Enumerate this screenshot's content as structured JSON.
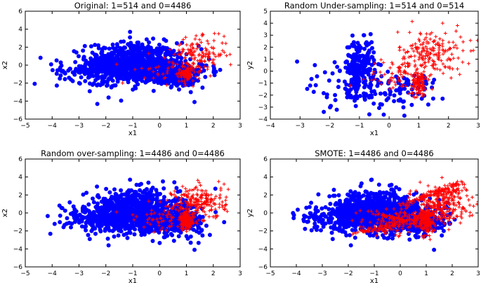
{
  "colors": {
    "class_0": "#0000ff",
    "class_1": "#ff0000",
    "axis": "#000000",
    "background": "#ffffff"
  },
  "chart_data": [
    {
      "type": "scatter",
      "title": "Original: 1=514 and 0=4486",
      "xlabel": "x1",
      "ylabel": "x2",
      "xlim": [
        -5,
        3
      ],
      "ylim": [
        -6,
        6
      ],
      "xticks": [
        -5,
        -4,
        -3,
        -2,
        -1,
        0,
        1,
        2,
        3
      ],
      "yticks": [
        -6,
        -4,
        -2,
        0,
        2,
        4,
        6
      ],
      "grid": false,
      "series": [
        {
          "class": "0",
          "marker": "circle",
          "count": 4486,
          "color": "#0000ff",
          "clusters": [
            {
              "cx": -1.0,
              "cy": 0.3,
              "sx": 0.85,
              "sy": 1.1,
              "n": 650
            },
            {
              "cx": -0.2,
              "cy": -0.6,
              "sx": 1.0,
              "sy": 0.8,
              "n": 350
            },
            {
              "cx": 0.7,
              "cy": -1.2,
              "sx": 0.45,
              "sy": 0.6,
              "n": 150
            },
            {
              "cx": -2.4,
              "cy": -0.6,
              "sx": 0.7,
              "sy": 0.7,
              "n": 120
            }
          ],
          "points": [
            [
              -3.7,
              -0.3
            ],
            [
              -3.3,
              -1.6
            ],
            [
              -2.6,
              -2.9
            ],
            [
              -1.1,
              3.7
            ],
            [
              1.6,
              -2.5
            ],
            [
              -1.9,
              -3.6
            ],
            [
              1.3,
              -4.1
            ]
          ]
        },
        {
          "class": "1",
          "marker": "plus",
          "count": 514,
          "color": "#ff0000",
          "clusters": [
            {
              "cx": 1.5,
              "cy": 1.2,
              "sx": 0.5,
              "sy": 0.9,
              "n": 130
            },
            {
              "cx": 1.0,
              "cy": -0.9,
              "sx": 0.12,
              "sy": 0.5,
              "n": 80
            },
            {
              "cx": 0.4,
              "cy": -0.7,
              "sx": 0.6,
              "sy": 0.7,
              "n": 40
            }
          ],
          "points": [
            [
              2.4,
              3.2
            ],
            [
              2.2,
              3.5
            ],
            [
              -0.4,
              1.3
            ],
            [
              -1.6,
              0.1
            ]
          ]
        }
      ]
    },
    {
      "type": "scatter",
      "title": "Random Under-sampling: 1=514 and 0=514",
      "xlabel": "x1",
      "ylabel": "y2",
      "xlim": [
        -4,
        3
      ],
      "ylim": [
        -4,
        5
      ],
      "xticks": [
        -4,
        -3,
        -2,
        -1,
        0,
        1,
        2,
        3
      ],
      "yticks": [
        -4,
        -3,
        -2,
        -1,
        0,
        1,
        2,
        3,
        4,
        5
      ],
      "grid": false,
      "series": [
        {
          "class": "0",
          "marker": "circle",
          "count": 514,
          "color": "#0000ff",
          "clusters": [
            {
              "cx": -1.0,
              "cy": 0.6,
              "sx": 0.25,
              "sy": 1.0,
              "n": 200
            },
            {
              "cx": -0.8,
              "cy": -1.5,
              "sx": 0.9,
              "sy": 0.9,
              "n": 120
            },
            {
              "cx": 0.8,
              "cy": -1.2,
              "sx": 0.4,
              "sy": 0.6,
              "n": 40
            }
          ],
          "points": [
            [
              -3.1,
              0.8
            ],
            [
              -2.2,
              -3.4
            ],
            [
              -2.5,
              0.5
            ],
            [
              1.8,
              -2.3
            ],
            [
              1.1,
              -2.3
            ]
          ]
        },
        {
          "class": "1",
          "marker": "plus",
          "count": 514,
          "color": "#ff0000",
          "clusters": [
            {
              "cx": 1.4,
              "cy": 1.4,
              "sx": 0.55,
              "sy": 1.0,
              "n": 200
            },
            {
              "cx": 1.0,
              "cy": -1.0,
              "sx": 0.12,
              "sy": 0.5,
              "n": 90
            },
            {
              "cx": 0.3,
              "cy": -0.4,
              "sx": 0.5,
              "sy": 0.7,
              "n": 60
            }
          ],
          "points": [
            [
              1.8,
              4.0
            ],
            [
              2.3,
              3.8
            ],
            [
              -1.3,
              -1.2
            ]
          ]
        }
      ]
    },
    {
      "type": "scatter",
      "title": "Random over-sampling: 1=4486 and 0=4486",
      "xlabel": "x1",
      "ylabel": "x2",
      "xlim": [
        -5,
        3
      ],
      "ylim": [
        -6,
        6
      ],
      "xticks": [
        -5,
        -4,
        -3,
        -2,
        -1,
        0,
        1,
        2,
        3
      ],
      "yticks": [
        -6,
        -4,
        -2,
        0,
        2,
        4,
        6
      ],
      "grid": false,
      "series": [
        {
          "class": "0",
          "marker": "circle",
          "count": 4486,
          "color": "#0000ff",
          "clusters": [
            {
              "cx": -1.0,
              "cy": 0.3,
              "sx": 0.85,
              "sy": 1.1,
              "n": 650
            },
            {
              "cx": -0.2,
              "cy": -0.6,
              "sx": 1.0,
              "sy": 0.8,
              "n": 350
            },
            {
              "cx": 0.7,
              "cy": -1.2,
              "sx": 0.45,
              "sy": 0.6,
              "n": 150
            },
            {
              "cx": -2.4,
              "cy": -0.6,
              "sx": 0.7,
              "sy": 0.7,
              "n": 120
            }
          ],
          "points": [
            [
              -3.7,
              -0.3
            ],
            [
              -3.3,
              -1.6
            ],
            [
              -2.6,
              -2.9
            ],
            [
              -1.1,
              3.7
            ],
            [
              1.6,
              -2.5
            ],
            [
              -1.9,
              -3.6
            ],
            [
              1.3,
              -4.1
            ]
          ]
        },
        {
          "class": "1",
          "marker": "plus",
          "count": 4486,
          "color": "#ff0000",
          "clusters": [
            {
              "cx": 1.5,
              "cy": 1.2,
              "sx": 0.5,
              "sy": 0.9,
              "n": 200
            },
            {
              "cx": 1.0,
              "cy": -0.9,
              "sx": 0.12,
              "sy": 0.5,
              "n": 130
            },
            {
              "cx": 0.4,
              "cy": -0.7,
              "sx": 0.6,
              "sy": 0.7,
              "n": 70
            }
          ],
          "points": [
            [
              2.4,
              3.2
            ],
            [
              2.2,
              3.5
            ],
            [
              -0.4,
              1.3
            ],
            [
              -1.6,
              0.1
            ],
            [
              -1.0,
              -0.2
            ]
          ]
        }
      ]
    },
    {
      "type": "scatter",
      "title": "SMOTE: 1=4486 and 0=4486",
      "xlabel": "x1",
      "ylabel": "y2",
      "xlim": [
        -5,
        3
      ],
      "ylim": [
        -6,
        6
      ],
      "xticks": [
        -5,
        -4,
        -3,
        -2,
        -1,
        0,
        1,
        2,
        3
      ],
      "yticks": [
        -6,
        -4,
        -2,
        0,
        2,
        4,
        6
      ],
      "grid": false,
      "series": [
        {
          "class": "0",
          "marker": "circle",
          "count": 4486,
          "color": "#0000ff",
          "clusters": [
            {
              "cx": -1.0,
              "cy": 0.3,
              "sx": 0.85,
              "sy": 1.1,
              "n": 650
            },
            {
              "cx": -0.2,
              "cy": -0.6,
              "sx": 1.0,
              "sy": 0.8,
              "n": 350
            },
            {
              "cx": 0.7,
              "cy": -1.2,
              "sx": 0.45,
              "sy": 0.6,
              "n": 150
            },
            {
              "cx": -2.4,
              "cy": -0.6,
              "sx": 0.7,
              "sy": 0.7,
              "n": 120
            }
          ],
          "points": [
            [
              -3.7,
              -0.3
            ],
            [
              -3.3,
              -1.6
            ],
            [
              -2.6,
              -2.9
            ],
            [
              -1.1,
              3.7
            ],
            [
              1.6,
              -2.5
            ],
            [
              -1.9,
              -3.6
            ],
            [
              1.3,
              -4.1
            ]
          ]
        },
        {
          "class": "1",
          "marker": "plus",
          "count": 4486,
          "color": "#ff0000",
          "clusters": [
            {
              "cx": 1.5,
              "cy": 1.0,
              "sx": 0.55,
              "sy": 1.0,
              "n": 260
            },
            {
              "cx": 1.0,
              "cy": -0.9,
              "sx": 0.15,
              "sy": 0.6,
              "n": 150
            },
            {
              "cx": 0.2,
              "cy": -0.7,
              "sx": 0.7,
              "sy": 0.8,
              "n": 110
            },
            {
              "cx": -0.6,
              "cy": -1.6,
              "sx": 0.5,
              "sy": 0.5,
              "n": 50
            }
          ],
          "segments": [
            {
              "from": [
                0.2,
                1.0
              ],
              "to": [
                2.4,
                3.4
              ],
              "n": 80
            },
            {
              "from": [
                -1.8,
                -2.3
              ],
              "to": [
                1.0,
                -0.5
              ],
              "n": 60
            },
            {
              "from": [
                -1.2,
                0.2
              ],
              "to": [
                1.0,
                -1.5
              ],
              "n": 40
            },
            {
              "from": [
                1.2,
                2.0
              ],
              "to": [
                2.5,
                2.7
              ],
              "n": 30
            }
          ],
          "points": [
            [
              2.4,
              3.2
            ],
            [
              2.2,
              3.5
            ],
            [
              -1.7,
              0.0
            ]
          ]
        }
      ]
    }
  ]
}
